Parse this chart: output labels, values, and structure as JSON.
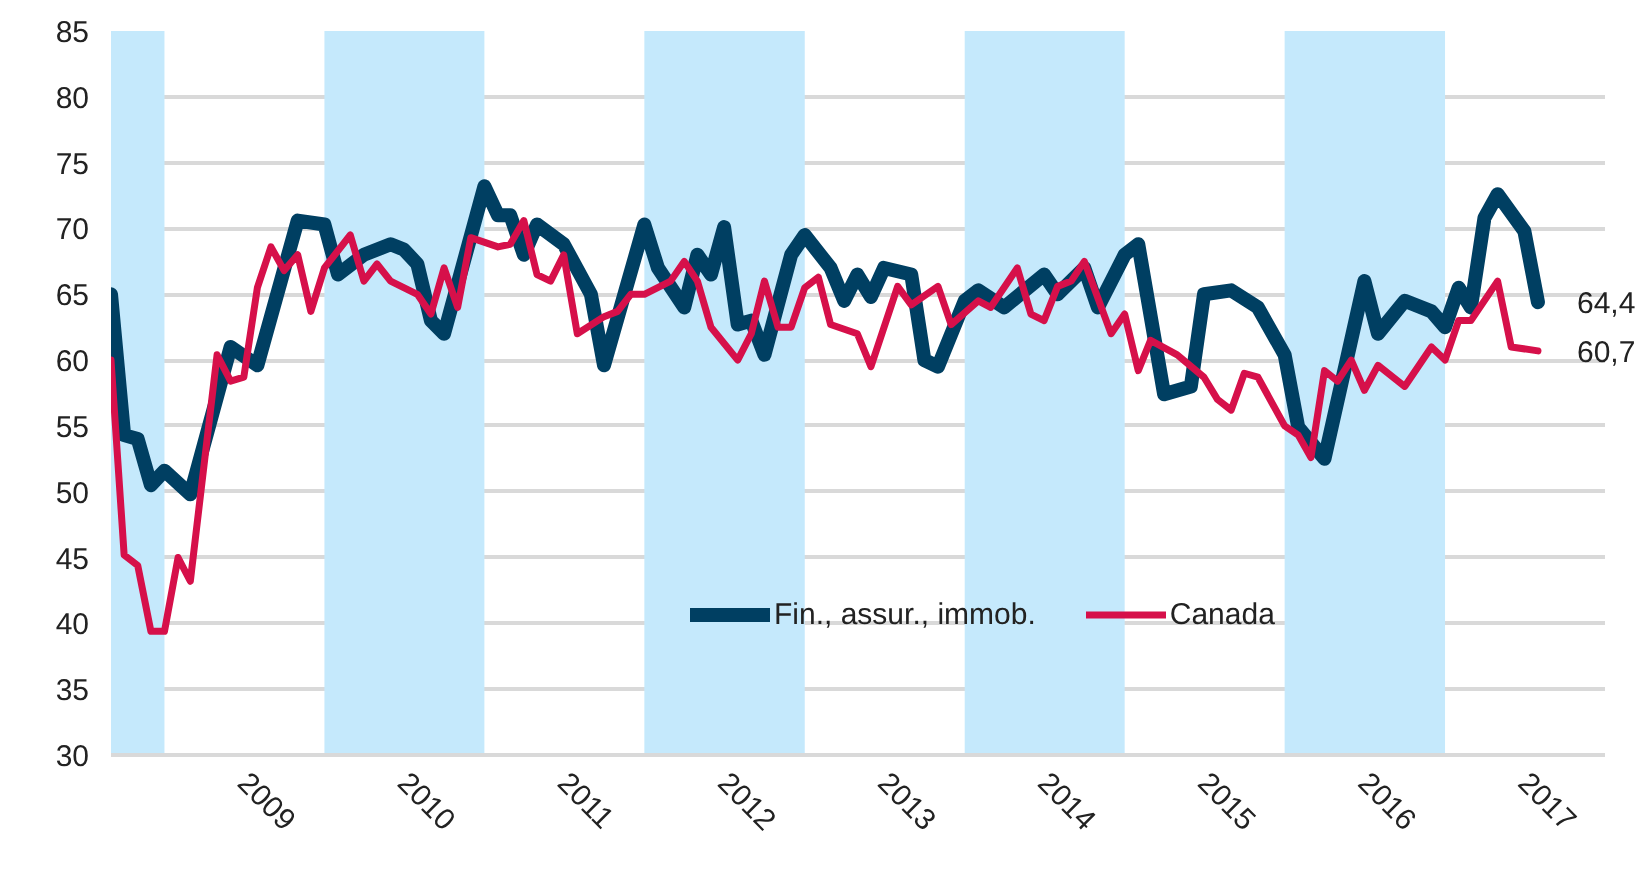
{
  "chart_data": {
    "type": "line",
    "xlim": [
      "2008-09",
      "2018-01"
    ],
    "ylim": [
      30,
      85
    ],
    "yticks": [
      30,
      35,
      40,
      45,
      50,
      55,
      60,
      65,
      70,
      75,
      80,
      85
    ],
    "xticks": [
      {
        "value": "2009-07",
        "label": "2009"
      },
      {
        "value": "2010-07",
        "label": "2010"
      },
      {
        "value": "2011-07",
        "label": "2011"
      },
      {
        "value": "2012-07",
        "label": "2012"
      },
      {
        "value": "2013-07",
        "label": "2013"
      },
      {
        "value": "2014-07",
        "label": "2014"
      },
      {
        "value": "2015-07",
        "label": "2015"
      },
      {
        "value": "2016-07",
        "label": "2016"
      },
      {
        "value": "2017-07",
        "label": "2017"
      }
    ],
    "grid": "y",
    "legend": "bottom right",
    "bands": [
      {
        "axis": "x",
        "from": "2008-09",
        "to": "2009-01",
        "color": "#c5e9fc"
      },
      {
        "axis": "x",
        "from": "2010-01",
        "to": "2011-01",
        "color": "#c5e9fc"
      },
      {
        "axis": "x",
        "from": "2012-01",
        "to": "2013-01",
        "color": "#c5e9fc"
      },
      {
        "axis": "x",
        "from": "2014-01",
        "to": "2015-01",
        "color": "#c5e9fc"
      },
      {
        "axis": "x",
        "from": "2016-01",
        "to": "2017-01",
        "color": "#c5e9fc"
      }
    ],
    "series": [
      {
        "name": "Fin., assur., immob.",
        "color": "#003f62",
        "x": [
          "2008-09",
          "2008-10",
          "2008-11",
          "2008-12",
          "2009-01",
          "2009-03",
          "2009-06",
          "2009-08",
          "2009-11",
          "2010-01",
          "2010-02",
          "2010-04",
          "2010-06",
          "2010-07",
          "2010-08",
          "2010-09",
          "2010-10",
          "2011-01",
          "2011-02",
          "2011-03",
          "2011-04",
          "2011-05",
          "2011-07",
          "2011-09",
          "2011-10",
          "2012-01",
          "2012-02",
          "2012-04",
          "2012-05",
          "2012-06",
          "2012-07",
          "2012-08",
          "2012-09",
          "2012-10",
          "2012-12",
          "2013-01",
          "2013-03",
          "2013-04",
          "2013-05",
          "2013-06",
          "2013-07",
          "2013-09",
          "2013-10",
          "2013-11",
          "2014-01",
          "2014-02",
          "2014-04",
          "2014-07",
          "2014-08",
          "2014-10",
          "2014-11",
          "2015-01",
          "2015-02",
          "2015-04",
          "2015-06",
          "2015-07",
          "2015-09",
          "2015-11",
          "2016-01",
          "2016-02",
          "2016-04",
          "2016-07",
          "2016-08",
          "2016-10",
          "2016-12",
          "2017-01",
          "2017-02",
          "2017-03",
          "2017-04",
          "2017-05",
          "2017-07",
          "2017-08"
        ],
        "values": [
          65,
          54.3,
          54,
          50.5,
          51.6,
          49.8,
          61,
          59.6,
          70.6,
          70.3,
          66.5,
          68,
          68.8,
          68.4,
          67.3,
          63,
          62,
          73.2,
          71,
          71,
          68,
          70.3,
          68.8,
          65,
          59.6,
          70.3,
          67,
          64,
          68,
          66.5,
          70.1,
          62.7,
          63,
          60.4,
          68,
          69.5,
          67,
          64.5,
          66.5,
          64.8,
          67,
          66.5,
          60,
          59.5,
          64.5,
          65.3,
          64,
          66.5,
          65,
          67,
          64,
          68,
          68.8,
          57.4,
          58,
          65,
          65.3,
          64,
          60.4,
          54.9,
          52.5,
          66,
          62,
          64.5,
          63.7,
          62.5,
          65.5,
          64,
          70.8,
          72.6,
          69.8,
          64.4
        ],
        "value_labels": [
          null,
          null,
          null,
          null,
          null,
          null,
          null,
          null,
          null,
          null,
          null,
          null,
          null,
          null,
          null,
          null,
          null,
          null,
          null,
          null,
          null,
          null,
          null,
          null,
          null,
          null,
          null,
          null,
          null,
          null,
          null,
          null,
          null,
          null,
          null,
          null,
          null,
          null,
          null,
          null,
          null,
          null,
          null,
          null,
          null,
          null,
          null,
          null,
          null,
          null,
          null,
          null,
          null,
          null,
          null,
          null,
          null,
          null,
          null,
          null,
          null,
          null,
          null,
          null,
          null,
          null,
          null,
          null,
          null,
          null,
          null,
          "64,4"
        ]
      },
      {
        "name": "Canada",
        "color": "#d6104a",
        "x": [
          "2008-09",
          "2008-10",
          "2008-11",
          "2008-12",
          "2009-01",
          "2009-02",
          "2009-03",
          "2009-05",
          "2009-06",
          "2009-07",
          "2009-08",
          "2009-09",
          "2009-10",
          "2009-11",
          "2009-12",
          "2010-01",
          "2010-03",
          "2010-04",
          "2010-05",
          "2010-06",
          "2010-08",
          "2010-09",
          "2010-10",
          "2010-11",
          "2010-12",
          "2011-02",
          "2011-03",
          "2011-04",
          "2011-05",
          "2011-06",
          "2011-07",
          "2011-08",
          "2011-10",
          "2011-11",
          "2011-12",
          "2012-01",
          "2012-03",
          "2012-04",
          "2012-05",
          "2012-06",
          "2012-08",
          "2012-09",
          "2012-10",
          "2012-11",
          "2012-12",
          "2013-01",
          "2013-02",
          "2013-03",
          "2013-05",
          "2013-06",
          "2013-08",
          "2013-09",
          "2013-11",
          "2013-12",
          "2014-02",
          "2014-03",
          "2014-05",
          "2014-06",
          "2014-07",
          "2014-08",
          "2014-09",
          "2014-10",
          "2014-12",
          "2015-01",
          "2015-02",
          "2015-03",
          "2015-05",
          "2015-07",
          "2015-08",
          "2015-09",
          "2015-10",
          "2015-11",
          "2016-01",
          "2016-02",
          "2016-03",
          "2016-04",
          "2016-05",
          "2016-06",
          "2016-07",
          "2016-08",
          "2016-10",
          "2016-12",
          "2017-01",
          "2017-02",
          "2017-03",
          "2017-05",
          "2017-06",
          "2017-08"
        ],
        "values": [
          60,
          45.2,
          44.4,
          39.4,
          39.4,
          45,
          43.2,
          60.4,
          58.4,
          58.7,
          65.5,
          68.6,
          66.8,
          68,
          63.7,
          67,
          69.5,
          66,
          67.3,
          66,
          65,
          63.5,
          67,
          64,
          69.3,
          68.6,
          68.8,
          70.6,
          66.5,
          66,
          68,
          62,
          63.3,
          63.7,
          65,
          65,
          66,
          67.5,
          66,
          62.5,
          60,
          62,
          66,
          62.5,
          62.5,
          65.5,
          66.3,
          62.7,
          62,
          59.5,
          65.6,
          64.2,
          65.6,
          62.7,
          64.5,
          64,
          67,
          63.5,
          63,
          65.6,
          66,
          67.5,
          62,
          63.5,
          59.2,
          61.5,
          60.4,
          58.7,
          57,
          56.2,
          59,
          58.7,
          55,
          54.3,
          52.6,
          59.2,
          58.4,
          60,
          57.7,
          59.6,
          58,
          61,
          60,
          63,
          63,
          66,
          61,
          60.7
        ],
        "value_labels": [
          null,
          null,
          null,
          null,
          null,
          null,
          null,
          null,
          null,
          null,
          null,
          null,
          null,
          null,
          null,
          null,
          null,
          null,
          null,
          null,
          null,
          null,
          null,
          null,
          null,
          null,
          null,
          null,
          null,
          null,
          null,
          null,
          null,
          null,
          null,
          null,
          null,
          null,
          null,
          null,
          null,
          null,
          null,
          null,
          null,
          null,
          null,
          null,
          null,
          null,
          null,
          null,
          null,
          null,
          null,
          null,
          null,
          null,
          null,
          null,
          null,
          null,
          null,
          null,
          null,
          null,
          null,
          null,
          null,
          null,
          null,
          null,
          null,
          null,
          null,
          null,
          null,
          null,
          null,
          null,
          null,
          null,
          null,
          null,
          null,
          null,
          null,
          "60,7"
        ]
      }
    ]
  }
}
